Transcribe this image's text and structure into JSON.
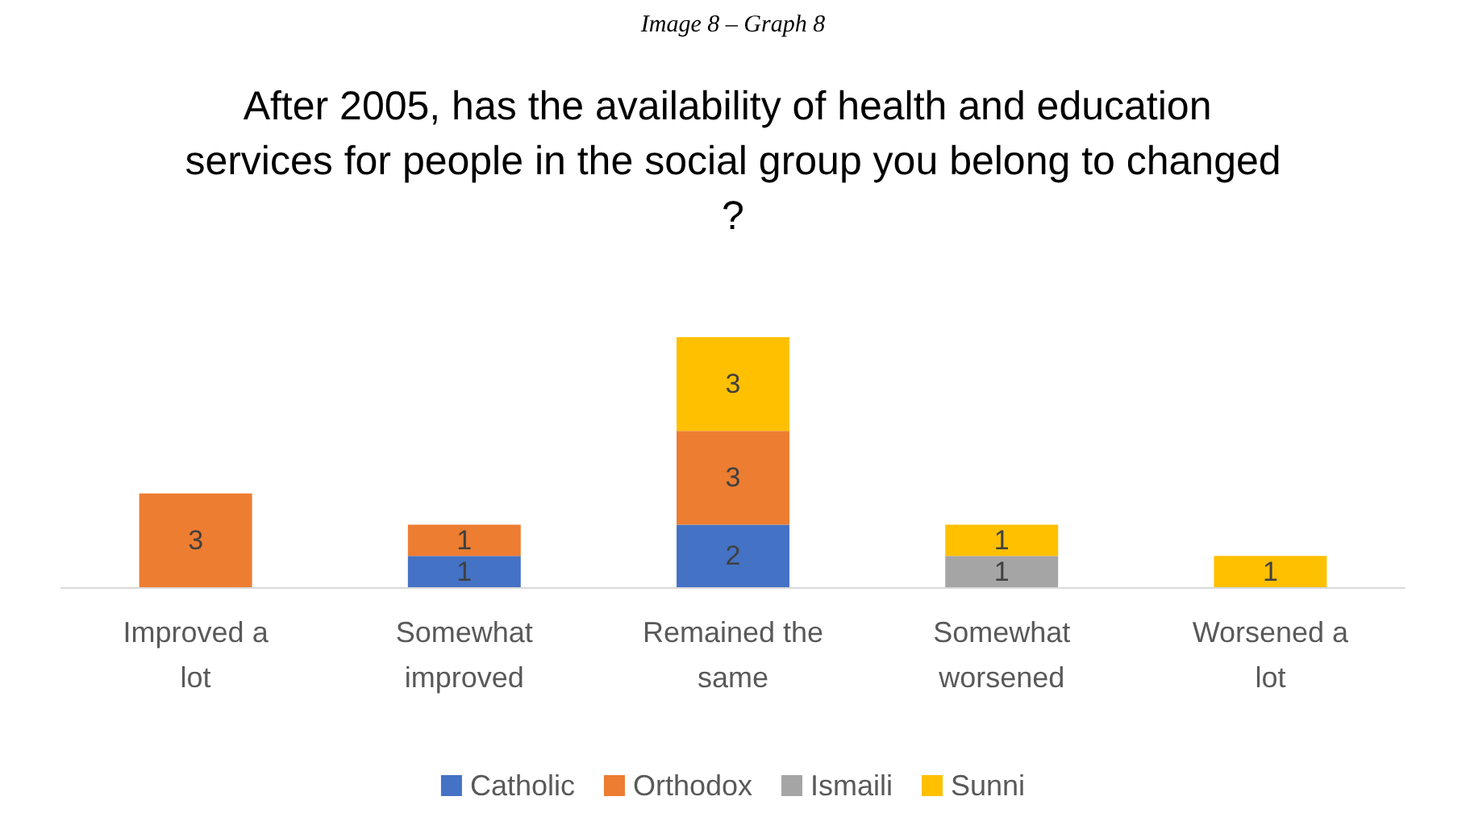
{
  "chart_data": {
    "type": "bar",
    "stacked": true,
    "data_labels": true,
    "legend": "bottom",
    "grid": false,
    "title": "After 2005, has the availability of health and education services for people in the social group you belong to changed?",
    "annotations": [
      "Image 8 – Graph 8"
    ],
    "categories": [
      "Improved a lot",
      "Somewhat improved",
      "Remained the same",
      "Somewhat worsened",
      "Worsened a lot"
    ],
    "series": [
      {
        "name": "Catholic",
        "color": "#4472c4",
        "values": [
          null,
          1,
          2,
          null,
          null
        ]
      },
      {
        "name": "Orthodox",
        "color": "#ed7d31",
        "values": [
          3,
          1,
          3,
          null,
          null
        ]
      },
      {
        "name": "Ismaili",
        "color": "#a5a5a5",
        "values": [
          null,
          null,
          null,
          1,
          null
        ]
      },
      {
        "name": "Sunni",
        "color": "#ffc000",
        "values": [
          null,
          null,
          3,
          1,
          1
        ]
      }
    ]
  }
}
